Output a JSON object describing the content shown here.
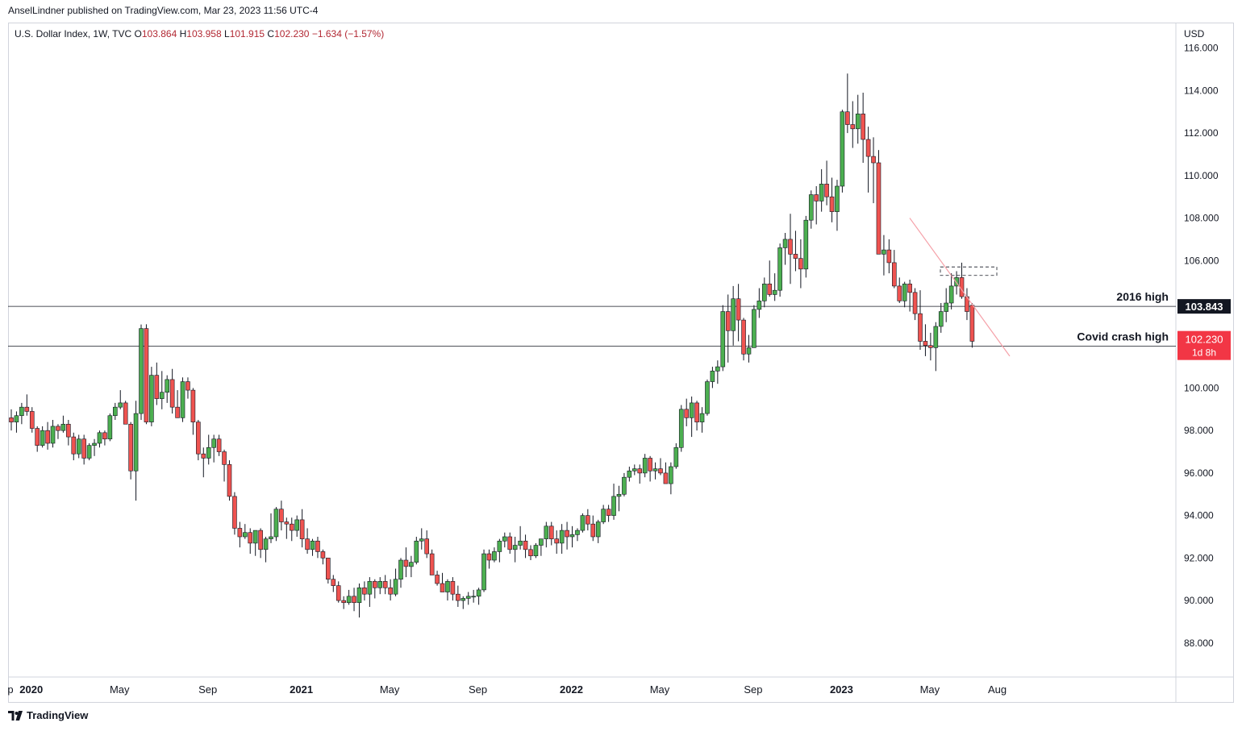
{
  "header": {
    "published": "AnselLindner published on TradingView.com, Mar 23, 2023 11:56 UTC-4"
  },
  "symbol": {
    "name": "U.S. Dollar Index, 1W, TVC",
    "open_label": "O",
    "open": "103.864",
    "high_label": "H",
    "high": "103.958",
    "low_label": "L",
    "low": "101.915",
    "close_label": "C",
    "close": "102.230",
    "change": "−1.634 (−1.57%)"
  },
  "footer": {
    "brand": "TradingView"
  },
  "colors": {
    "up": "#22ab94",
    "down": "#f23645",
    "up_fill": "#4caf50",
    "down_fill": "#ef5350",
    "trend": "#f5a0a8",
    "axis_text": "#131722"
  },
  "chart_data": {
    "type": "candlestick",
    "currency": "USD",
    "y_ticks": [
      "116.000",
      "114.000",
      "112.000",
      "110.000",
      "108.000",
      "106.000",
      "100.000",
      "98.000",
      "96.000",
      "94.000",
      "92.000",
      "90.000",
      "88.000"
    ],
    "ylim": [
      86.4,
      117.2
    ],
    "x_ticks": [
      {
        "label": "p",
        "bold": false,
        "week": -3
      },
      {
        "label": "2020",
        "bold": true,
        "week": 1
      },
      {
        "label": "May",
        "bold": false,
        "week": 18
      },
      {
        "label": "Sep",
        "bold": false,
        "week": 35
      },
      {
        "label": "2021",
        "bold": true,
        "week": 53
      },
      {
        "label": "May",
        "bold": false,
        "week": 70
      },
      {
        "label": "Sep",
        "bold": false,
        "week": 87
      },
      {
        "label": "2022",
        "bold": true,
        "week": 105
      },
      {
        "label": "May",
        "bold": false,
        "week": 122
      },
      {
        "label": "Sep",
        "bold": false,
        "week": 140
      },
      {
        "label": "2023",
        "bold": true,
        "week": 157
      },
      {
        "label": "May",
        "bold": false,
        "week": 174
      },
      {
        "label": "Aug",
        "bold": false,
        "week": 187
      }
    ],
    "horizontal_lines": [
      {
        "name": "2016 high",
        "value": 103.843,
        "label": "103.843"
      },
      {
        "name": "Covid crash high",
        "value": 101.97
      }
    ],
    "last_price": {
      "value": 102.23,
      "label": "102.230",
      "countdown": "1d 8h"
    },
    "annotations": [
      "2016 high",
      "Covid crash high"
    ],
    "ohlc_weekly_start_2019_09": [
      [
        98.6,
        99.0,
        98.0,
        98.4
      ],
      [
        98.4,
        98.9,
        97.9,
        98.7
      ],
      [
        98.7,
        99.3,
        98.3,
        99.1
      ],
      [
        99.1,
        99.7,
        98.7,
        98.9
      ],
      [
        98.9,
        99.1,
        97.9,
        98.1
      ],
      [
        98.1,
        98.2,
        97.0,
        97.3
      ],
      [
        97.3,
        98.2,
        97.2,
        98.0
      ],
      [
        98.0,
        98.4,
        97.1,
        97.4
      ],
      [
        97.4,
        98.5,
        97.2,
        98.2
      ],
      [
        98.2,
        98.3,
        97.6,
        98.0
      ],
      [
        98.0,
        98.7,
        97.9,
        98.3
      ],
      [
        98.3,
        98.5,
        97.3,
        97.7
      ],
      [
        97.7,
        97.9,
        96.6,
        96.9
      ],
      [
        96.9,
        97.8,
        96.7,
        97.6
      ],
      [
        97.6,
        97.8,
        96.4,
        96.7
      ],
      [
        96.7,
        97.4,
        96.6,
        97.3
      ],
      [
        97.3,
        97.6,
        96.8,
        97.4
      ],
      [
        97.4,
        98.0,
        97.2,
        97.9
      ],
      [
        97.9,
        98.0,
        97.3,
        97.6
      ],
      [
        97.6,
        98.8,
        97.5,
        98.7
      ],
      [
        98.7,
        99.3,
        98.5,
        99.1
      ],
      [
        99.1,
        99.9,
        99.0,
        99.3
      ],
      [
        99.3,
        99.4,
        98.3,
        98.3
      ],
      [
        98.3,
        98.4,
        95.7,
        96.1
      ],
      [
        96.1,
        99.4,
        94.7,
        98.8
      ],
      [
        98.8,
        102.99,
        98.5,
        102.8
      ],
      [
        102.8,
        103.0,
        98.3,
        98.4
      ],
      [
        98.4,
        101.0,
        98.2,
        100.6
      ],
      [
        100.6,
        101.2,
        99.2,
        99.5
      ],
      [
        99.5,
        100.8,
        99.0,
        99.8
      ],
      [
        99.8,
        100.6,
        99.3,
        100.4
      ],
      [
        100.4,
        100.9,
        98.8,
        99.1
      ],
      [
        99.1,
        99.9,
        98.6,
        98.6
      ],
      [
        98.6,
        100.5,
        98.4,
        100.3
      ],
      [
        100.3,
        100.5,
        99.5,
        99.9
      ],
      [
        99.9,
        100.0,
        97.8,
        98.4
      ],
      [
        98.4,
        98.5,
        96.6,
        96.9
      ],
      [
        96.9,
        97.2,
        95.8,
        96.7
      ],
      [
        96.7,
        97.8,
        96.4,
        97.2
      ],
      [
        97.2,
        97.8,
        96.5,
        97.6
      ],
      [
        97.6,
        97.8,
        96.8,
        97.0
      ],
      [
        97.0,
        97.1,
        95.6,
        96.4
      ],
      [
        96.4,
        96.6,
        94.7,
        94.9
      ],
      [
        94.9,
        95.1,
        93.1,
        93.4
      ],
      [
        93.4,
        93.7,
        92.5,
        93.0
      ],
      [
        93.0,
        93.6,
        92.9,
        93.2
      ],
      [
        93.2,
        93.4,
        92.2,
        92.7
      ],
      [
        92.7,
        93.3,
        92.1,
        93.3
      ],
      [
        93.3,
        93.4,
        92.0,
        92.4
      ],
      [
        92.4,
        93.0,
        91.8,
        92.9
      ],
      [
        92.9,
        94.1,
        92.7,
        93.0
      ],
      [
        93.0,
        94.4,
        92.8,
        94.3
      ],
      [
        94.3,
        94.7,
        93.3,
        93.7
      ],
      [
        93.7,
        93.9,
        92.9,
        93.6
      ],
      [
        93.6,
        93.9,
        92.8,
        93.3
      ],
      [
        93.3,
        94.0,
        93.0,
        93.8
      ],
      [
        93.8,
        94.3,
        92.5,
        92.9
      ],
      [
        92.9,
        93.4,
        92.2,
        92.4
      ],
      [
        92.4,
        92.9,
        92.1,
        92.8
      ],
      [
        92.8,
        93.0,
        92.0,
        92.3
      ],
      [
        92.3,
        92.4,
        91.7,
        92.0
      ],
      [
        92.0,
        92.0,
        90.8,
        91.0
      ],
      [
        91.0,
        91.2,
        90.4,
        90.7
      ],
      [
        90.7,
        90.9,
        89.9,
        90.0
      ],
      [
        90.0,
        90.2,
        89.6,
        89.9
      ],
      [
        89.9,
        90.5,
        89.8,
        90.2
      ],
      [
        90.2,
        90.6,
        89.5,
        89.9
      ],
      [
        89.9,
        90.8,
        89.2,
        90.6
      ],
      [
        90.6,
        90.9,
        90.0,
        90.3
      ],
      [
        90.3,
        91.1,
        89.7,
        90.9
      ],
      [
        90.9,
        91.0,
        90.1,
        90.6
      ],
      [
        90.6,
        91.1,
        90.3,
        90.9
      ],
      [
        90.9,
        91.2,
        90.3,
        90.6
      ],
      [
        90.6,
        91.0,
        90.0,
        90.3
      ],
      [
        90.3,
        91.5,
        90.2,
        91.0
      ],
      [
        91.0,
        92.0,
        90.6,
        91.9
      ],
      [
        91.9,
        92.5,
        91.1,
        91.6
      ],
      [
        91.6,
        92.1,
        91.1,
        91.8
      ],
      [
        91.8,
        93.0,
        91.7,
        92.8
      ],
      [
        92.8,
        93.4,
        92.4,
        92.9
      ],
      [
        92.9,
        93.3,
        92.0,
        92.2
      ],
      [
        92.2,
        92.4,
        91.2,
        91.2
      ],
      [
        91.2,
        91.4,
        90.7,
        90.8
      ],
      [
        90.8,
        91.3,
        90.4,
        90.4
      ],
      [
        90.4,
        91.0,
        90.0,
        90.9
      ],
      [
        90.9,
        91.1,
        90.0,
        90.3
      ],
      [
        90.3,
        90.7,
        89.7,
        90.0
      ],
      [
        90.0,
        90.2,
        89.6,
        90.1
      ],
      [
        90.1,
        90.4,
        89.8,
        90.2
      ],
      [
        90.2,
        90.5,
        89.9,
        90.2
      ],
      [
        90.2,
        90.6,
        89.8,
        90.5
      ],
      [
        90.5,
        92.4,
        90.4,
        92.2
      ],
      [
        92.2,
        92.4,
        91.5,
        91.9
      ],
      [
        91.9,
        92.5,
        91.8,
        92.3
      ],
      [
        92.3,
        92.9,
        91.8,
        92.8
      ],
      [
        92.8,
        93.2,
        92.5,
        93.0
      ],
      [
        93.0,
        93.2,
        92.2,
        92.4
      ],
      [
        92.4,
        93.0,
        91.8,
        92.6
      ],
      [
        92.6,
        93.5,
        92.4,
        92.8
      ],
      [
        92.8,
        93.1,
        92.0,
        92.4
      ],
      [
        92.4,
        92.6,
        91.9,
        92.1
      ],
      [
        92.1,
        92.7,
        92.0,
        92.6
      ],
      [
        92.6,
        92.9,
        92.1,
        92.9
      ],
      [
        92.9,
        93.7,
        92.5,
        93.5
      ],
      [
        93.5,
        93.7,
        92.6,
        92.9
      ],
      [
        92.9,
        93.3,
        92.2,
        92.7
      ],
      [
        92.7,
        93.6,
        92.2,
        93.3
      ],
      [
        93.3,
        93.7,
        92.4,
        93.0
      ],
      [
        93.0,
        93.5,
        92.5,
        93.1
      ],
      [
        93.1,
        93.4,
        92.8,
        93.3
      ],
      [
        93.3,
        94.1,
        93.2,
        94.0
      ],
      [
        94.0,
        94.3,
        93.3,
        93.6
      ],
      [
        93.6,
        94.0,
        92.8,
        93.0
      ],
      [
        93.0,
        93.8,
        92.7,
        93.7
      ],
      [
        93.7,
        94.5,
        93.6,
        94.3
      ],
      [
        94.3,
        94.5,
        93.7,
        94.0
      ],
      [
        94.0,
        95.5,
        93.8,
        94.9
      ],
      [
        94.9,
        95.4,
        94.2,
        95.0
      ],
      [
        95.0,
        96.0,
        94.9,
        95.8
      ],
      [
        95.8,
        96.3,
        95.6,
        96.1
      ],
      [
        96.1,
        96.4,
        95.9,
        96.2
      ],
      [
        96.2,
        96.4,
        95.5,
        96.0
      ],
      [
        96.0,
        96.9,
        95.8,
        96.7
      ],
      [
        96.7,
        96.8,
        95.6,
        96.1
      ],
      [
        96.1,
        96.5,
        95.7,
        96.2
      ],
      [
        96.2,
        96.7,
        95.9,
        96.0
      ],
      [
        96.0,
        96.5,
        95.7,
        95.5
      ]
    ]
  }
}
